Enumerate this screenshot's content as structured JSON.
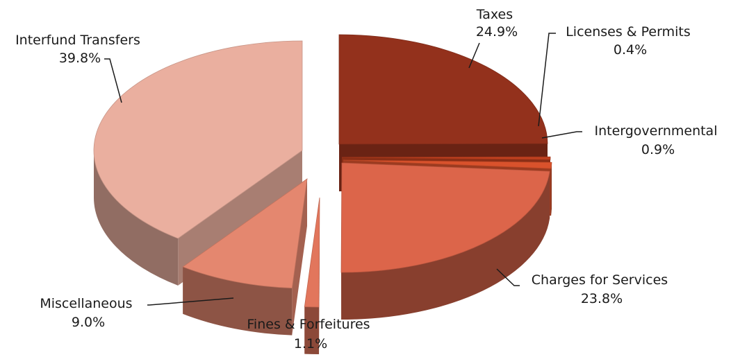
{
  "chart_data": {
    "type": "pie",
    "style": "3d-exploded",
    "slices": [
      {
        "name": "Taxes",
        "value": 24.9,
        "label": "24.9%",
        "color": "#93311c"
      },
      {
        "name": "Licenses & Permits",
        "value": 0.4,
        "label": "0.4%",
        "color": "#c0401f"
      },
      {
        "name": "Intergovernmental",
        "value": 0.9,
        "label": "0.9%",
        "color": "#d9522c"
      },
      {
        "name": "Charges for Services",
        "value": 23.8,
        "label": "23.8%",
        "color": "#dc654a"
      },
      {
        "name": "Fines & Forfeitures",
        "value": 1.1,
        "label": "1.1%",
        "color": "#e2765c"
      },
      {
        "name": "Miscellaneous",
        "value": 9.0,
        "label": "9.0%",
        "color": "#e4876f"
      },
      {
        "name": "Interfund Transfers",
        "value": 39.8,
        "label": "39.8%",
        "color": "#eaaf9f"
      }
    ]
  }
}
